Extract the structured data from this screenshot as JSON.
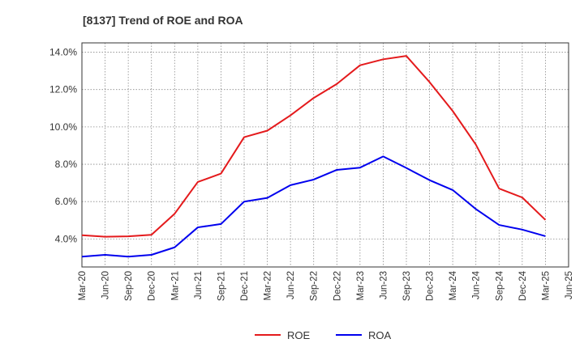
{
  "chart_data": {
    "type": "line",
    "title": "[8137]  Trend of ROE and ROA",
    "xlabel": "",
    "ylabel": "",
    "ylim": [
      2.5,
      14.5
    ],
    "y_ticks": [
      4.0,
      6.0,
      8.0,
      10.0,
      12.0,
      14.0
    ],
    "y_tick_labels": [
      "4.0%",
      "6.0%",
      "8.0%",
      "10.0%",
      "12.0%",
      "14.0%"
    ],
    "x_tick_labels": [
      "Mar-20",
      "Jun-20",
      "Sep-20",
      "Dec-20",
      "Mar-21",
      "Jun-21",
      "Sep-21",
      "Dec-21",
      "Mar-22",
      "Jun-22",
      "Sep-22",
      "Dec-22",
      "Mar-23",
      "Jun-23",
      "Sep-23",
      "Dec-23",
      "Mar-24",
      "Jun-24",
      "Sep-24",
      "Dec-24",
      "Mar-25",
      "Jun-25"
    ],
    "categories": [
      "Mar-20",
      "Jun-20",
      "Sep-20",
      "Dec-20",
      "Mar-21",
      "Jun-21",
      "Sep-21",
      "Dec-21",
      "Mar-22",
      "Jun-22",
      "Sep-22",
      "Dec-22",
      "Mar-23",
      "Jun-23",
      "Sep-23",
      "Dec-23",
      "Mar-24",
      "Jun-24",
      "Sep-24",
      "Dec-24",
      "Mar-25"
    ],
    "grid": true,
    "legend_position": "bottom",
    "series": [
      {
        "name": "ROE",
        "color": "#e41a1c",
        "values": [
          4.2,
          4.12,
          4.14,
          4.22,
          5.35,
          7.05,
          7.5,
          9.45,
          9.8,
          10.62,
          11.55,
          12.3,
          13.3,
          13.62,
          13.8,
          12.4,
          10.85,
          9.05,
          6.7,
          6.22,
          5.02
        ]
      },
      {
        "name": "ROA",
        "color": "#0000ee",
        "values": [
          3.05,
          3.15,
          3.05,
          3.15,
          3.55,
          4.62,
          4.8,
          6.0,
          6.2,
          6.88,
          7.18,
          7.7,
          7.82,
          8.42,
          7.8,
          7.15,
          6.62,
          5.6,
          4.75,
          4.5,
          4.15
        ]
      }
    ]
  }
}
